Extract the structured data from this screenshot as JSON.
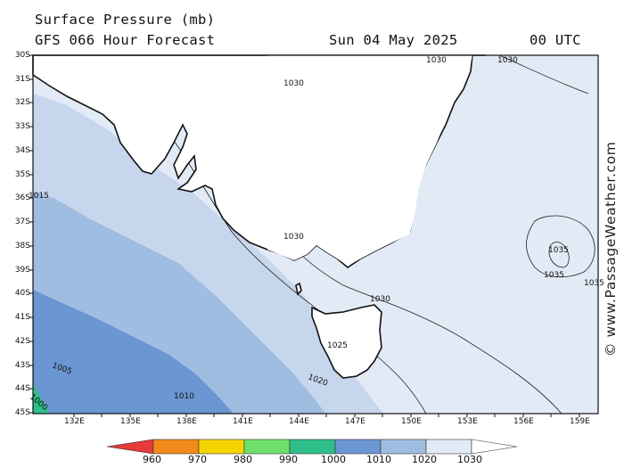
{
  "header": {
    "title": "Surface Pressure (mb)",
    "forecast": "GFS 066 Hour Forecast",
    "date": "Sun 04 May 2025",
    "time": "00 UTC"
  },
  "map": {
    "lat_labels": [
      "30S",
      "31S",
      "32S",
      "33S",
      "34S",
      "35S",
      "36S",
      "37S",
      "38S",
      "39S",
      "40S",
      "41S",
      "42S",
      "43S",
      "44S",
      "45S"
    ],
    "lon_labels": [
      "132E",
      "135E",
      "138E",
      "141E",
      "144E",
      "147E",
      "150E",
      "153E",
      "156E",
      "159E"
    ],
    "isobar_labels": [
      "1030",
      "1030",
      "1030",
      "1030",
      "1030",
      "1035",
      "1035",
      "1035",
      "1025",
      "1020",
      "1015",
      "1010",
      "1005",
      "1000"
    ]
  },
  "legend": {
    "ticks": [
      "960",
      "970",
      "980",
      "990",
      "1000",
      "1010",
      "1020",
      "1030"
    ],
    "colors": [
      "#e8393b",
      "#f08a1a",
      "#f5d400",
      "#6ee06a",
      "#2fbf8a",
      "#6a96d1",
      "#9fbde0",
      "#e2eaf6"
    ]
  },
  "watermark": "© www.PassageWeather.com"
}
